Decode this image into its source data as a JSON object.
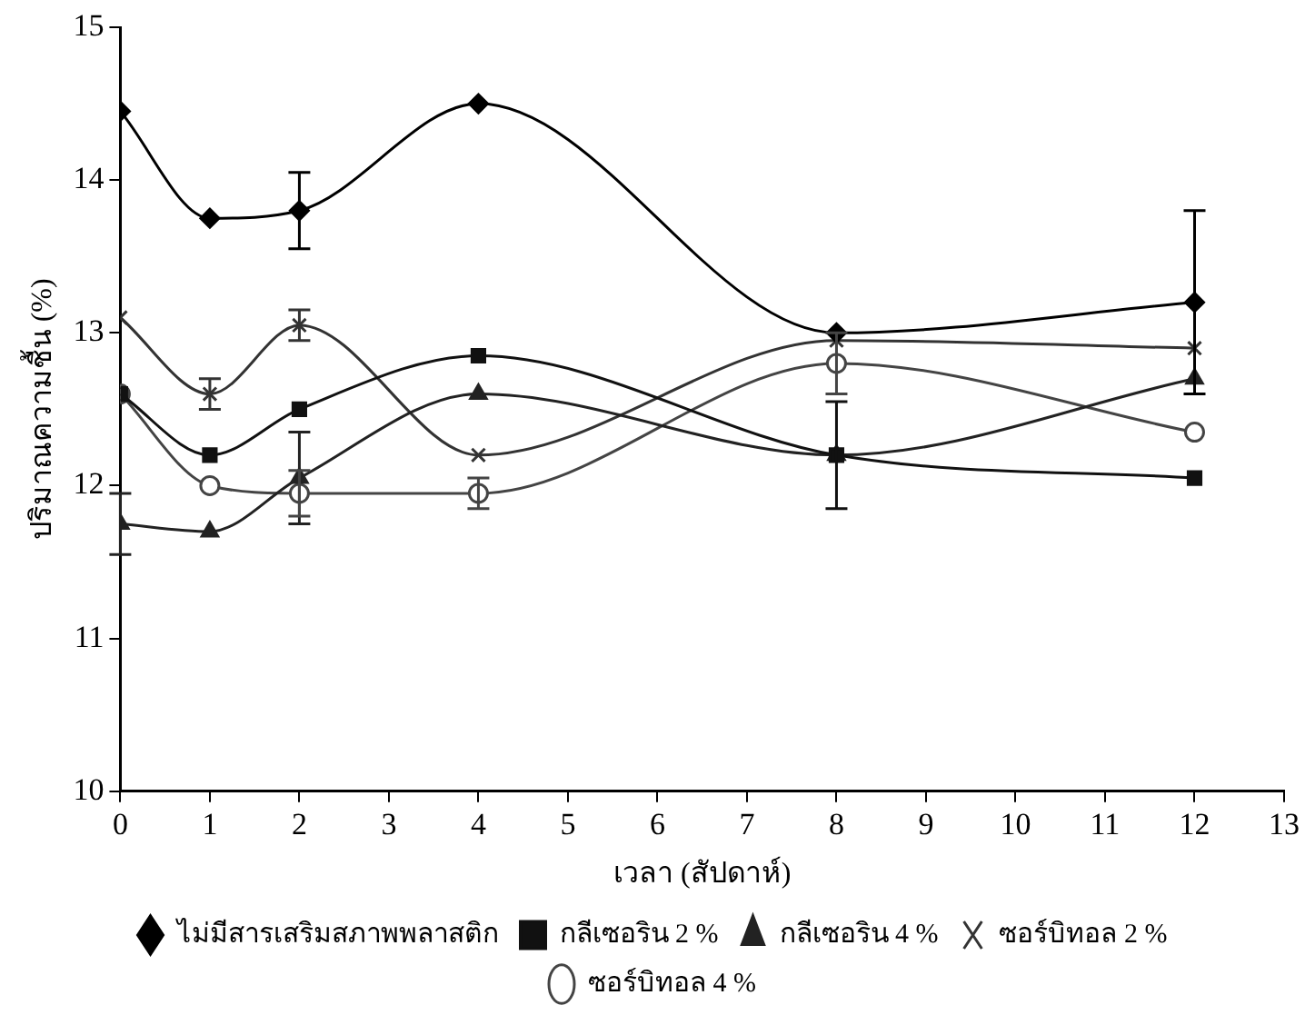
{
  "chart_data": {
    "type": "line",
    "xlabel": "เวลา (สัปดาห์)",
    "ylabel": "ปริมาณความชื้น (%)",
    "x": [
      0,
      1,
      2,
      4,
      8,
      12
    ],
    "xlim": [
      0,
      13
    ],
    "xticks": [
      0,
      1,
      2,
      3,
      4,
      5,
      6,
      7,
      8,
      9,
      10,
      11,
      12,
      13
    ],
    "ylim": [
      10,
      15
    ],
    "yticks": [
      10,
      11,
      12,
      13,
      14,
      15
    ],
    "grid": false,
    "legend": "bottom",
    "line_style": "solid",
    "series": [
      {
        "name": "ไม่มีสารเสริมสภาพพลาสติก",
        "color": "#000000",
        "marker": "diamond",
        "values": [
          14.45,
          13.75,
          13.8,
          14.5,
          13.0,
          13.2
        ],
        "errors": [
          null,
          null,
          0.25,
          null,
          null,
          0.6
        ]
      },
      {
        "name": "กลีเซอริน 2 %",
        "color": "#111111",
        "marker": "square",
        "values": [
          12.6,
          12.2,
          12.5,
          12.85,
          12.2,
          12.05
        ],
        "errors": [
          null,
          null,
          null,
          null,
          0.35,
          null
        ]
      },
      {
        "name": "กลีเซอริน 4 %",
        "color": "#222222",
        "marker": "triangle",
        "values": [
          11.75,
          11.7,
          12.05,
          12.6,
          12.2,
          12.7
        ],
        "errors": [
          0.2,
          null,
          0.3,
          null,
          null,
          null
        ]
      },
      {
        "name": "ซอร์บิทอล 2 %",
        "color": "#333333",
        "marker": "cross",
        "values": [
          13.1,
          12.6,
          13.05,
          12.2,
          12.95,
          12.9
        ],
        "errors": [
          null,
          0.1,
          0.1,
          null,
          null,
          null
        ]
      },
      {
        "name": "ซอร์บิทอล 4 %",
        "color": "#444444",
        "marker": "circle",
        "values": [
          12.6,
          12.0,
          11.95,
          11.95,
          12.8,
          12.35
        ],
        "errors": [
          null,
          null,
          0.15,
          0.1,
          0.2,
          null
        ]
      }
    ]
  }
}
